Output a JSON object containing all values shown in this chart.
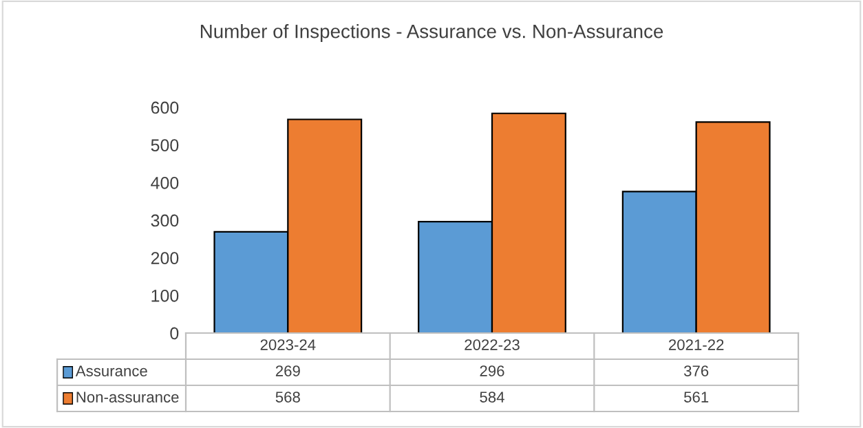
{
  "chart_data": {
    "type": "bar",
    "title": "Number of Inspections - Assurance vs. Non-Assurance",
    "categories": [
      "2023-24",
      "2022-23",
      "2021-22"
    ],
    "series": [
      {
        "name": "Assurance",
        "color": "#5b9bd5",
        "values": [
          269,
          296,
          376
        ]
      },
      {
        "name": "Non-assurance",
        "color": "#ed7d31",
        "values": [
          568,
          584,
          561
        ]
      }
    ],
    "ylim": [
      0,
      600
    ],
    "yticks": [
      0,
      100,
      200,
      300,
      400,
      500,
      600
    ],
    "data_labels": true,
    "grid": false,
    "legend": "bottom left"
  }
}
